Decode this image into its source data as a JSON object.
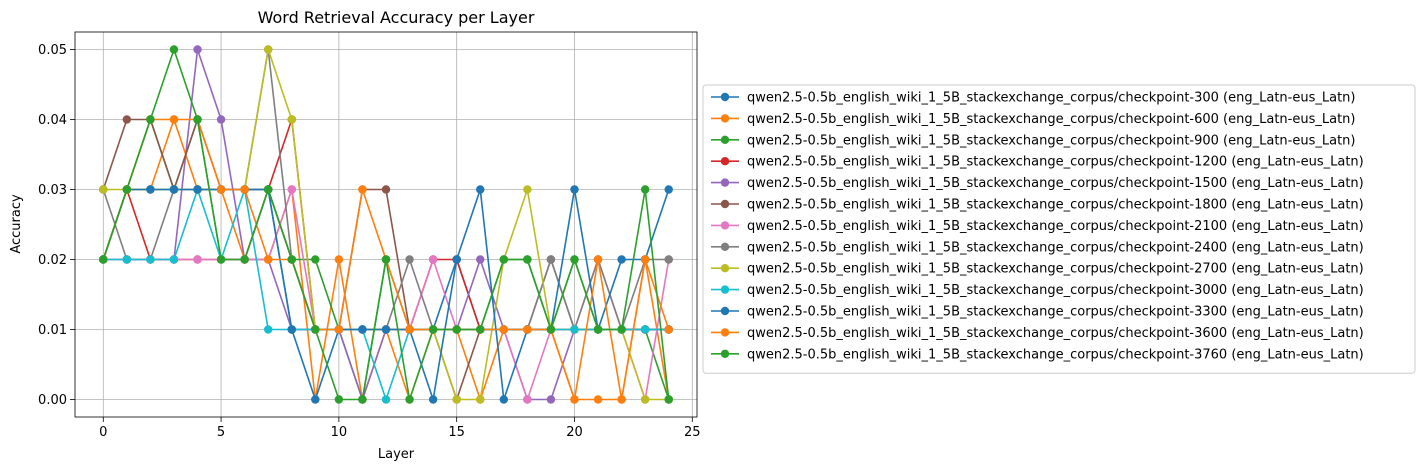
{
  "chart_data": {
    "type": "line",
    "title": "Word Retrieval Accuracy per Layer",
    "xlabel": "Layer",
    "ylabel": "Accuracy",
    "xlim": [
      -1.2,
      25.2
    ],
    "ylim": [
      -0.0025,
      0.0525
    ],
    "xticks": [
      "0",
      "5",
      "10",
      "15",
      "20",
      "25"
    ],
    "yticks": [
      "0.00",
      "0.01",
      "0.02",
      "0.03",
      "0.04",
      "0.05"
    ],
    "grid": true,
    "legend_placement": "center-right-outside",
    "x": [
      0,
      1,
      2,
      3,
      4,
      5,
      6,
      7,
      8,
      9,
      10,
      11,
      12,
      13,
      14,
      15,
      16,
      17,
      18,
      19,
      20,
      21,
      22,
      23,
      24
    ],
    "series": [
      {
        "name": "qwen2.5-0.5b_english_wiki_1_5B_stackexchange_corpus/checkpoint-300 (eng_Latn-eus_Latn)",
        "color": "#1f77b4",
        "values": [
          0.02,
          0.03,
          0.03,
          0.03,
          0.03,
          0.03,
          0.03,
          0.03,
          0.01,
          0.01,
          0.01,
          0.01,
          0.01,
          0.01,
          0.01,
          0.02,
          0.01,
          0.01,
          0.01,
          0.01,
          0.01,
          0.01,
          0.01,
          0.01,
          0.01
        ]
      },
      {
        "name": "qwen2.5-0.5b_english_wiki_1_5B_stackexchange_corpus/checkpoint-600 (eng_Latn-eus_Latn)",
        "color": "#ff7f0e",
        "values": [
          0.02,
          0.03,
          0.03,
          0.04,
          0.03,
          0.03,
          0.02,
          0.02,
          0.03,
          0.0,
          0.02,
          0.0,
          0.01,
          0.0,
          0.01,
          0.01,
          0.0,
          0.01,
          0.01,
          0.01,
          0.0,
          0.0,
          0.0,
          0.02,
          0.0
        ]
      },
      {
        "name": "qwen2.5-0.5b_english_wiki_1_5B_stackexchange_corpus/checkpoint-900 (eng_Latn-eus_Latn)",
        "color": "#2ca02c",
        "values": [
          0.02,
          0.03,
          0.04,
          0.03,
          0.04,
          0.02,
          0.02,
          0.03,
          0.02,
          0.02,
          0.01,
          0.0,
          0.02,
          0.01,
          0.01,
          0.01,
          0.01,
          0.02,
          0.02,
          0.01,
          0.02,
          0.01,
          0.01,
          0.01,
          0.0
        ]
      },
      {
        "name": "qwen2.5-0.5b_english_wiki_1_5B_stackexchange_corpus/checkpoint-1200 (eng_Latn-eus_Latn)",
        "color": "#d62728",
        "values": [
          0.02,
          0.03,
          0.02,
          0.02,
          0.02,
          0.02,
          0.02,
          0.03,
          0.04,
          0.01,
          0.01,
          0.01,
          0.01,
          0.01,
          0.02,
          0.02,
          0.01,
          0.01,
          0.01,
          0.01,
          0.01,
          0.01,
          0.01,
          0.01,
          0.01
        ]
      },
      {
        "name": "qwen2.5-0.5b_english_wiki_1_5B_stackexchange_corpus/checkpoint-1500 (eng_Latn-eus_Latn)",
        "color": "#9467bd",
        "values": [
          0.02,
          0.02,
          0.02,
          0.02,
          0.05,
          0.04,
          0.02,
          0.02,
          0.01,
          0.01,
          0.01,
          0.0,
          0.01,
          0.01,
          0.01,
          0.01,
          0.02,
          0.01,
          0.0,
          0.0,
          0.01,
          0.01,
          0.01,
          0.01,
          0.01
        ]
      },
      {
        "name": "qwen2.5-0.5b_english_wiki_1_5B_stackexchange_corpus/checkpoint-1800 (eng_Latn-eus_Latn)",
        "color": "#8c564b",
        "values": [
          0.03,
          0.04,
          0.04,
          0.03,
          0.04,
          0.03,
          0.03,
          0.03,
          0.02,
          0.01,
          0.01,
          0.03,
          0.03,
          0.01,
          0.01,
          0.0,
          0.01,
          0.01,
          0.01,
          0.02,
          0.01,
          0.01,
          0.01,
          0.01,
          0.01
        ]
      },
      {
        "name": "qwen2.5-0.5b_english_wiki_1_5B_stackexchange_corpus/checkpoint-2100 (eng_Latn-eus_Latn)",
        "color": "#e377c2",
        "values": [
          0.02,
          0.02,
          0.02,
          0.02,
          0.02,
          0.02,
          0.02,
          0.02,
          0.03,
          0.01,
          0.01,
          0.01,
          0.01,
          0.01,
          0.02,
          0.01,
          0.01,
          0.01,
          0.0,
          0.01,
          0.01,
          0.02,
          0.01,
          0.0,
          0.02
        ]
      },
      {
        "name": "qwen2.5-0.5b_english_wiki_1_5B_stackexchange_corpus/checkpoint-2400 (eng_Latn-eus_Latn)",
        "color": "#7f7f7f",
        "values": [
          0.03,
          0.02,
          0.02,
          0.03,
          0.03,
          0.03,
          0.03,
          0.05,
          0.02,
          0.01,
          0.01,
          0.01,
          0.01,
          0.02,
          0.01,
          0.01,
          0.01,
          0.01,
          0.01,
          0.02,
          0.01,
          0.02,
          0.01,
          0.02,
          0.02
        ]
      },
      {
        "name": "qwen2.5-0.5b_english_wiki_1_5B_stackexchange_corpus/checkpoint-2700 (eng_Latn-eus_Latn)",
        "color": "#bcbd22",
        "values": [
          0.03,
          0.03,
          0.03,
          0.03,
          0.03,
          0.03,
          0.03,
          0.05,
          0.04,
          0.01,
          0.01,
          0.01,
          0.01,
          0.01,
          0.01,
          0.0,
          0.0,
          0.02,
          0.03,
          0.01,
          0.01,
          0.01,
          0.01,
          0.0,
          0.0
        ]
      },
      {
        "name": "qwen2.5-0.5b_english_wiki_1_5B_stackexchange_corpus/checkpoint-3000 (eng_Latn-eus_Latn)",
        "color": "#17becf",
        "values": [
          0.02,
          0.02,
          0.02,
          0.02,
          0.03,
          0.02,
          0.03,
          0.01,
          0.01,
          0.01,
          0.01,
          0.01,
          0.0,
          0.01,
          0.01,
          0.01,
          0.01,
          0.01,
          0.01,
          0.01,
          0.01,
          0.01,
          0.01,
          0.01,
          0.01
        ]
      },
      {
        "name": "qwen2.5-0.5b_english_wiki_1_5B_stackexchange_corpus/checkpoint-3300 (eng_Latn-eus_Latn)",
        "color": "#1f77b4",
        "values": [
          0.02,
          0.03,
          0.03,
          0.03,
          0.03,
          0.03,
          0.03,
          0.03,
          0.01,
          0.0,
          0.01,
          0.01,
          0.01,
          0.01,
          0.0,
          0.02,
          0.03,
          0.0,
          0.01,
          0.01,
          0.03,
          0.01,
          0.02,
          0.02,
          0.03
        ]
      },
      {
        "name": "qwen2.5-0.5b_english_wiki_1_5B_stackexchange_corpus/checkpoint-3600 (eng_Latn-eus_Latn)",
        "color": "#ff7f0e",
        "values": [
          0.02,
          0.03,
          0.04,
          0.04,
          0.04,
          0.03,
          0.03,
          0.02,
          0.02,
          0.01,
          0.01,
          0.03,
          0.02,
          0.01,
          0.01,
          0.01,
          0.01,
          0.01,
          0.01,
          0.01,
          0.0,
          0.02,
          0.0,
          0.02,
          0.01
        ]
      },
      {
        "name": "qwen2.5-0.5b_english_wiki_1_5B_stackexchange_corpus/checkpoint-3760 (eng_Latn-eus_Latn)",
        "color": "#2ca02c",
        "values": [
          0.02,
          0.03,
          0.04,
          0.05,
          0.04,
          0.02,
          0.02,
          0.03,
          0.02,
          0.01,
          0.0,
          0.0,
          0.02,
          0.0,
          0.01,
          0.01,
          0.01,
          0.02,
          0.02,
          0.01,
          0.02,
          0.01,
          0.01,
          0.03,
          0.0
        ]
      }
    ]
  }
}
